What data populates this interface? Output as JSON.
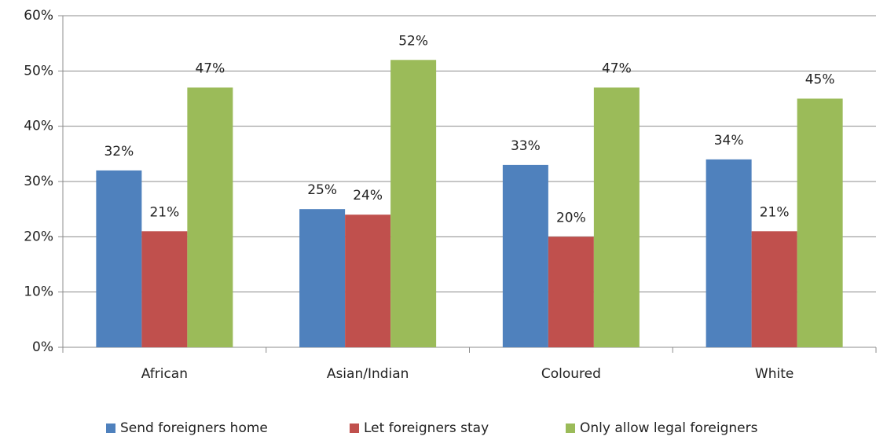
{
  "chart_data": {
    "type": "bar",
    "categories": [
      "African",
      "Asian/Indian",
      "Coloured",
      "White"
    ],
    "series": [
      {
        "name": "Send foreigners home",
        "color": "#4f81bd",
        "values": [
          32,
          25,
          33,
          34
        ],
        "value_labels": [
          "32%",
          "25%",
          "33%",
          "34%"
        ]
      },
      {
        "name": "Let foreigners stay",
        "color": "#c0504d",
        "values": [
          21,
          24,
          20,
          21
        ],
        "value_labels": [
          "21%",
          "24%",
          "20%",
          "21%"
        ]
      },
      {
        "name": "Only allow legal foreigners",
        "color": "#9bbb59",
        "values": [
          47,
          52,
          47,
          45
        ],
        "value_labels": [
          "47%",
          "52%",
          "47%",
          "45%"
        ]
      }
    ],
    "ylim": [
      0,
      60
    ],
    "yticks": [
      {
        "value": 0,
        "label": "0%"
      },
      {
        "value": 10,
        "label": "10%"
      },
      {
        "value": 20,
        "label": "20%"
      },
      {
        "value": 30,
        "label": "30%"
      },
      {
        "value": 40,
        "label": "40%"
      },
      {
        "value": 50,
        "label": "50%"
      },
      {
        "value": 60,
        "label": "60%"
      }
    ],
    "grid": true,
    "legend": "bottom"
  }
}
